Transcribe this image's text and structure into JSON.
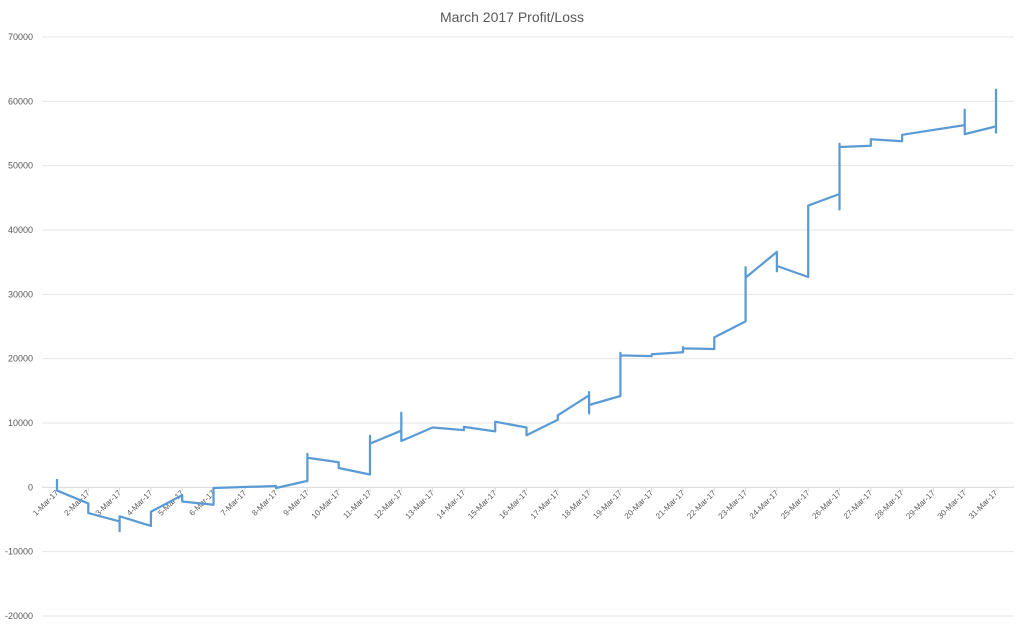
{
  "chart_data": {
    "type": "line",
    "title": "March 2017 Profit/Loss",
    "xlabel": "",
    "ylabel": "",
    "ylim": [
      -20000,
      70000
    ],
    "y_ticks": [
      "-20000",
      "-10000",
      "0",
      "10000",
      "20000",
      "30000",
      "40000",
      "50000",
      "60000",
      "70000"
    ],
    "grid": true,
    "legend": "none",
    "categories": [
      "1-Mar-17",
      "2-Mar-17",
      "3-Mar-17",
      "4-Mar-17",
      "5-Mar-17",
      "6-Mar-17",
      "7-Mar-17",
      "8-Mar-17",
      "9-Mar-17",
      "10-Mar-17",
      "11-Mar-17",
      "12-Mar-17",
      "13-Mar-17",
      "14-Mar-17",
      "15-Mar-17",
      "16-Mar-17",
      "17-Mar-17",
      "18-Mar-17",
      "19-Mar-17",
      "20-Mar-17",
      "21-Mar-17",
      "22-Mar-17",
      "23-Mar-17",
      "24-Mar-17",
      "25-Mar-17",
      "26-Mar-17",
      "27-Mar-17",
      "28-Mar-17",
      "29-Mar-17",
      "30-Mar-17",
      "31-Mar-17"
    ],
    "series": [
      {
        "color": "#5b9bd5",
        "points": [
          [
            0,
            1300
          ],
          [
            0,
            -500
          ],
          [
            1,
            -2500
          ],
          [
            1,
            -4000
          ],
          [
            2,
            -5300
          ],
          [
            2,
            -6800
          ],
          [
            2,
            -4500
          ],
          [
            3,
            -6000
          ],
          [
            3,
            -3800
          ],
          [
            4,
            -1200
          ],
          [
            4,
            -2200
          ],
          [
            5,
            -2700
          ],
          [
            5,
            -100
          ],
          [
            7,
            200
          ],
          [
            7,
            -100
          ],
          [
            8,
            1000
          ],
          [
            8,
            5200
          ],
          [
            8,
            4600
          ],
          [
            9,
            3900
          ],
          [
            9,
            3000
          ],
          [
            10,
            2000
          ],
          [
            10,
            8000
          ],
          [
            10,
            6800
          ],
          [
            11,
            8800
          ],
          [
            11,
            11600
          ],
          [
            11,
            7200
          ],
          [
            12,
            9300
          ],
          [
            13,
            8900
          ],
          [
            13,
            9400
          ],
          [
            14,
            8700
          ],
          [
            14,
            10200
          ],
          [
            15,
            9300
          ],
          [
            15,
            8100
          ],
          [
            16,
            10500
          ],
          [
            16,
            11200
          ],
          [
            17,
            14300
          ],
          [
            17,
            14800
          ],
          [
            17,
            11500
          ],
          [
            17,
            12800
          ],
          [
            18,
            14200
          ],
          [
            18,
            20900
          ],
          [
            18,
            20500
          ],
          [
            19,
            20400
          ],
          [
            19,
            20700
          ],
          [
            20,
            21000
          ],
          [
            20,
            21800
          ],
          [
            20,
            21600
          ],
          [
            21,
            21500
          ],
          [
            21,
            23300
          ],
          [
            22,
            25800
          ],
          [
            22,
            34200
          ],
          [
            22,
            32600
          ],
          [
            23,
            36600
          ],
          [
            23,
            33600
          ],
          [
            23,
            34400
          ],
          [
            24,
            32700
          ],
          [
            24,
            43800
          ],
          [
            25,
            45600
          ],
          [
            25,
            43200
          ],
          [
            25,
            53400
          ],
          [
            25,
            52900
          ],
          [
            26,
            53100
          ],
          [
            26,
            54100
          ],
          [
            27,
            53800
          ],
          [
            27,
            54800
          ],
          [
            29,
            56300
          ],
          [
            29,
            58700
          ],
          [
            29,
            54900
          ],
          [
            30,
            56100
          ],
          [
            30,
            61800
          ],
          [
            30,
            55000
          ]
        ]
      }
    ]
  }
}
